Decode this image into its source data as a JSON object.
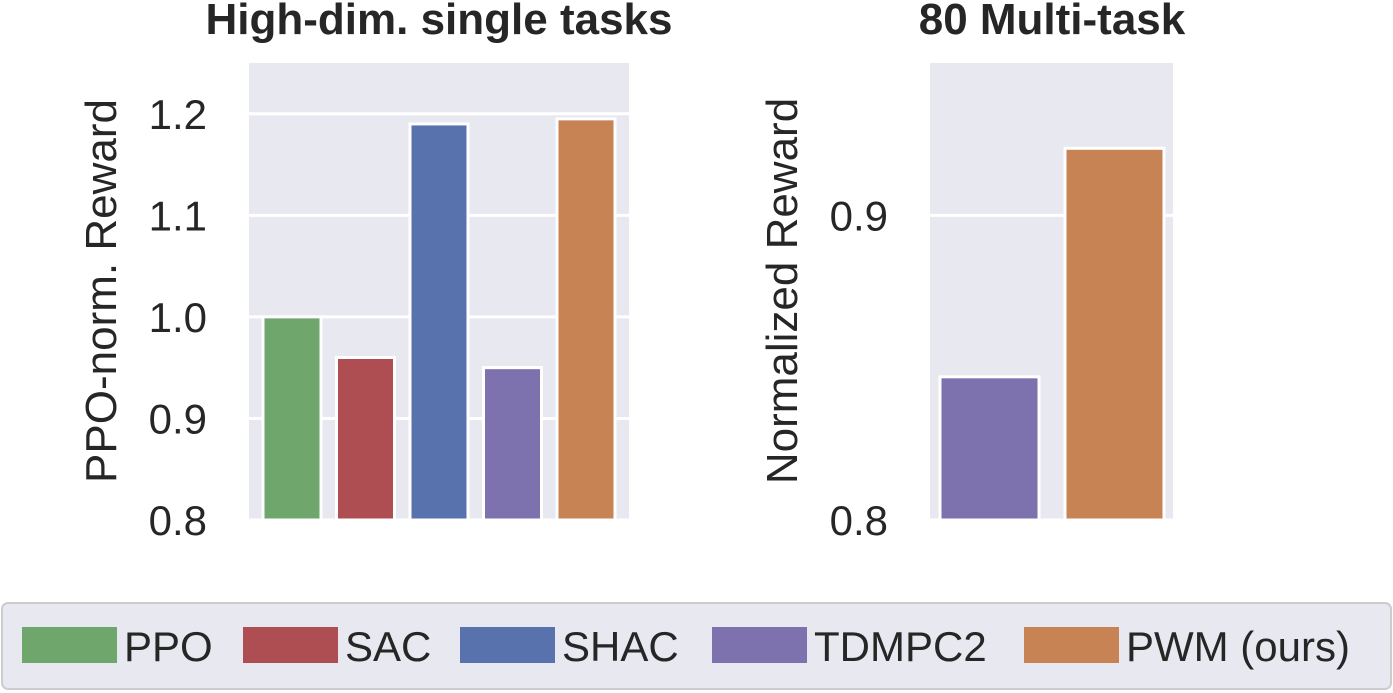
{
  "chart_data": [
    {
      "type": "bar",
      "title": "High-dim. single tasks",
      "ylabel": "PPO-norm. Reward",
      "xlabel": "",
      "categories": [
        "PPO",
        "SAC",
        "SHAC",
        "TDMPC2",
        "PWM (ours)"
      ],
      "values": [
        1.0,
        0.96,
        1.19,
        0.95,
        1.195
      ],
      "colors": [
        "#6fa66c",
        "#ae4d52",
        "#5872ae",
        "#7e72ae",
        "#c88355"
      ],
      "yticks": [
        "0.8",
        "0.9",
        "1.0",
        "1.1",
        "1.2"
      ],
      "ylim": [
        0.8,
        1.25
      ],
      "grid": true
    },
    {
      "type": "bar",
      "title": "80 Multi-task",
      "ylabel": "Normalized Reward",
      "xlabel": "",
      "categories": [
        "TDMPC2",
        "PWM (ours)"
      ],
      "values": [
        0.847,
        0.922
      ],
      "colors": [
        "#7e72ae",
        "#c88355"
      ],
      "yticks": [
        "0.8",
        "0.9"
      ],
      "ylim": [
        0.8,
        0.95
      ],
      "grid": true
    }
  ],
  "legend": {
    "placement": "bottom",
    "items": [
      {
        "label": "PPO",
        "color": "#6fa66c"
      },
      {
        "label": "SAC",
        "color": "#ae4d52"
      },
      {
        "label": "SHAC",
        "color": "#5872ae"
      },
      {
        "label": "TDMPC2",
        "color": "#7e72ae"
      },
      {
        "label": "PWM (ours)",
        "color": "#c88355"
      }
    ]
  }
}
